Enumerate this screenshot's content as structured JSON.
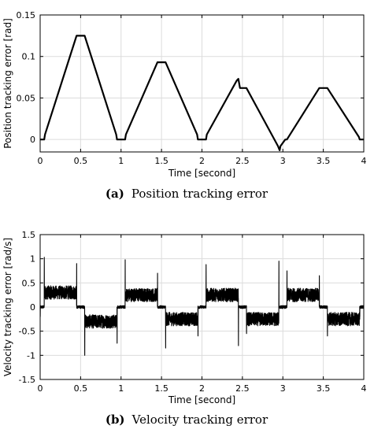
{
  "chart_data": [
    {
      "type": "line",
      "panel": "a",
      "caption_label": "(a)",
      "caption_text": "Position tracking error",
      "xlabel": "Time [second]",
      "ylabel": "Position tracking error [rad]",
      "xlim": [
        0,
        4
      ],
      "ylim": [
        -0.015,
        0.15
      ],
      "xticks": [
        0,
        0.5,
        1,
        1.5,
        2,
        2.5,
        3,
        3.5,
        4
      ],
      "xtick_labels": [
        "0",
        "0.5",
        "1",
        "1.5",
        "2",
        "2.5",
        "3",
        "3.5",
        "4"
      ],
      "yticks": [
        0,
        0.05,
        0.1,
        0.15
      ],
      "ytick_labels": [
        "0",
        "0.05",
        "0.1",
        "0.15"
      ],
      "grid": true,
      "color": "#000000",
      "series": [
        {
          "x": [
            0,
            0.05,
            0.06,
            0.45,
            0.55,
            0.94,
            0.95,
            1.05,
            1.06,
            1.45,
            1.55,
            1.94,
            1.95,
            2.05,
            2.06,
            2.43,
            2.45,
            2.47,
            2.55,
            2.94,
            2.96,
            2.97,
            3.03,
            3.05,
            3.45,
            3.55,
            3.94,
            3.95,
            4.0
          ],
          "y": [
            0,
            0,
            0.006,
            0.125,
            0.125,
            0.006,
            0,
            0,
            0.006,
            0.093,
            0.093,
            0.006,
            0,
            0,
            0.006,
            0.071,
            0.073,
            0.062,
            0.062,
            -0.008,
            -0.013,
            -0.008,
            0,
            0,
            0.062,
            0.062,
            0.003,
            0,
            0
          ]
        }
      ]
    },
    {
      "type": "line",
      "panel": "b",
      "caption_label": "(b)",
      "caption_text": "Velocity tracking error",
      "xlabel": "Time [second]",
      "ylabel": "Velocity tracking error [rad/s]",
      "xlim": [
        0,
        4
      ],
      "ylim": [
        -1.5,
        1.5
      ],
      "xticks": [
        0,
        0.5,
        1,
        1.5,
        2,
        2.5,
        3,
        3.5,
        4
      ],
      "xtick_labels": [
        "0",
        "0.5",
        "1",
        "1.5",
        "2",
        "2.5",
        "3",
        "3.5",
        "4"
      ],
      "yticks": [
        -1.5,
        -1,
        -0.5,
        0,
        0.5,
        1,
        1.5
      ],
      "ytick_labels": [
        "-1.5",
        "-1",
        "-0.5",
        "0",
        "0.5",
        "1",
        "1.5"
      ],
      "grid": true,
      "color": "#000000",
      "segments": [
        {
          "x_start": 0.0,
          "x_end": 0.05,
          "level": 0.0,
          "noise": 0.03,
          "spike": -0.2
        },
        {
          "x_start": 0.05,
          "x_end": 0.45,
          "level": 0.3,
          "noise": 0.14,
          "spike": 1.03
        },
        {
          "x_start": 0.45,
          "x_end": 0.55,
          "level": 0.0,
          "noise": 0.03,
          "spike": 0.9
        },
        {
          "x_start": 0.55,
          "x_end": 0.95,
          "level": -0.3,
          "noise": 0.14,
          "spike": -1.0
        },
        {
          "x_start": 0.95,
          "x_end": 1.05,
          "level": 0.0,
          "noise": 0.03,
          "spike": -0.75
        },
        {
          "x_start": 1.05,
          "x_end": 1.45,
          "level": 0.25,
          "noise": 0.14,
          "spike": 0.98
        },
        {
          "x_start": 1.45,
          "x_end": 1.55,
          "level": 0.0,
          "noise": 0.03,
          "spike": 0.7
        },
        {
          "x_start": 1.55,
          "x_end": 1.95,
          "level": -0.25,
          "noise": 0.14,
          "spike": -0.85
        },
        {
          "x_start": 1.95,
          "x_end": 2.05,
          "level": 0.0,
          "noise": 0.03,
          "spike": -0.6
        },
        {
          "x_start": 2.05,
          "x_end": 2.45,
          "level": 0.25,
          "noise": 0.14,
          "spike": 0.88
        },
        {
          "x_start": 2.45,
          "x_end": 2.55,
          "level": 0.0,
          "noise": 0.03,
          "spike": -0.8
        },
        {
          "x_start": 2.55,
          "x_end": 2.95,
          "level": -0.25,
          "noise": 0.14,
          "spike": -0.55
        },
        {
          "x_start": 2.95,
          "x_end": 3.05,
          "level": 0.0,
          "noise": 0.03,
          "spike": 0.95
        },
        {
          "x_start": 3.05,
          "x_end": 3.45,
          "level": 0.25,
          "noise": 0.14,
          "spike": 0.75
        },
        {
          "x_start": 3.45,
          "x_end": 3.55,
          "level": 0.0,
          "noise": 0.03,
          "spike": 0.65
        },
        {
          "x_start": 3.55,
          "x_end": 3.95,
          "level": -0.25,
          "noise": 0.14,
          "spike": -0.6
        },
        {
          "x_start": 3.95,
          "x_end": 4.0,
          "level": 0.0,
          "noise": 0.03,
          "spike": -0.2
        }
      ]
    }
  ]
}
